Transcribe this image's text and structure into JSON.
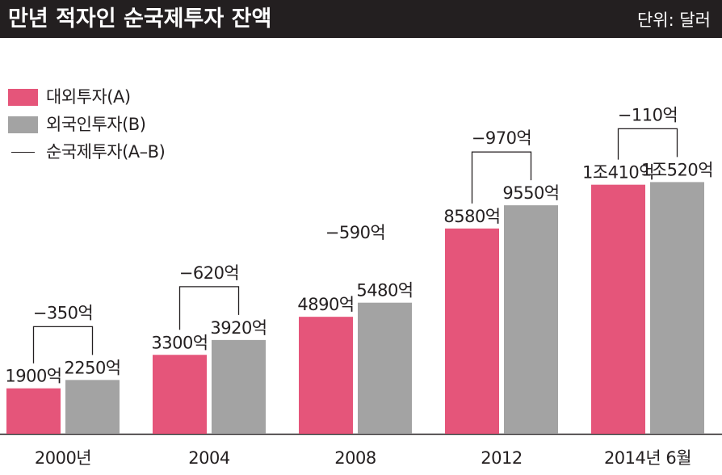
{
  "header": {
    "title": "만년 적자인 순국제투자 잔액",
    "unit": "단위: 달러"
  },
  "colors": {
    "outward": "#e5557a",
    "inward": "#a3a3a3",
    "header_bg": "#231f20",
    "text": "#231f20"
  },
  "chart_data": {
    "type": "bar",
    "title": "만년 적자인 순국제투자 잔액",
    "unit": "단위: 달러",
    "categories": [
      "2000년",
      "2004",
      "2008",
      "2012",
      "2014년 6월"
    ],
    "series": [
      {
        "name": "대외투자(A)",
        "values": [
          1900,
          3300,
          4890,
          8580,
          10410
        ],
        "labels": [
          "1900억",
          "3300억",
          "4890억",
          "8580억",
          "1조410억"
        ]
      },
      {
        "name": "외국인투자(B)",
        "values": [
          2250,
          3920,
          5480,
          9550,
          10520
        ],
        "labels": [
          "2250억",
          "3920억",
          "5480억",
          "9550억",
          "1조520억"
        ]
      }
    ],
    "net_series": {
      "name": "순국제투자(A–B)",
      "values": [
        -350,
        -620,
        -590,
        -970,
        -110
      ],
      "labels": [
        "−350억",
        "−620억",
        "−590억",
        "−970억",
        "−110억"
      ]
    },
    "legend": "top-left",
    "grid": false
  }
}
